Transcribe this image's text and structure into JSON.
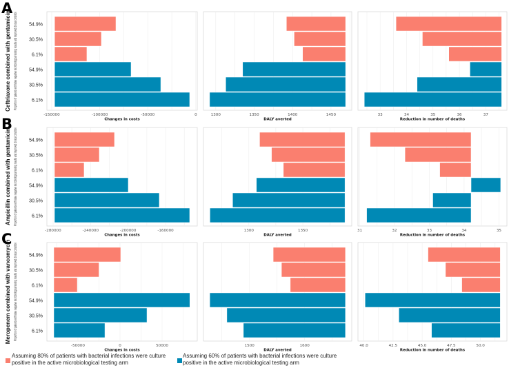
{
  "colors": {
    "red": "#FA7F6F",
    "blue": "#0089B5",
    "grid": "#EEEEEE",
    "frame": "#D9D9D9"
  },
  "legend": {
    "items": [
      {
        "label": "Assuming 80% of patients with bacterial infections were culture positive in the active microbiological testing arm",
        "color": "#FA7F6F"
      },
      {
        "label": "Assuming 60% of patients with bacterial infections were culture positive in the active microbiological testing arm",
        "color": "#0089B5"
      }
    ]
  },
  "chart_data": [
    {
      "label": "A",
      "title": "Ceftriaxone combined with gentamicin",
      "ylabel": "Proportion of patients with false negative microbiological testing results and improved clinical condition",
      "categories": [
        "54.9%",
        "30.5%",
        "6.1%"
      ],
      "panels": [
        {
          "type": "bar",
          "orientation": "horizontal",
          "xlabel": "Changes in costs",
          "xlim": [
            -155000,
            1500
          ],
          "base": -147000,
          "xticks": [
            -150000,
            -100000,
            -50000,
            0
          ],
          "xtick_labels": [
            "-150000",
            "-100000",
            "-50000",
            "0"
          ],
          "series": [
            {
              "color": "#FA7F6F",
              "values": [
                -83200,
                -98300,
                -113400
              ]
            },
            {
              "color": "#0089B5",
              "values": [
                -67400,
                -36500,
                -6400
              ]
            }
          ]
        },
        {
          "type": "bar",
          "orientation": "horizontal",
          "xlabel": "DALY averted",
          "xlim": [
            1284,
            1477
          ],
          "base": 1469,
          "xticks": [
            1300,
            1350,
            1400,
            1450
          ],
          "xtick_labels": [
            "1300",
            "1350",
            "1400",
            "1450"
          ],
          "series": [
            {
              "color": "#FA7F6F",
              "values": [
                1392,
                1402,
                1413
              ]
            },
            {
              "color": "#0089B5",
              "values": [
                1335,
                1313,
                1292
              ]
            }
          ]
        },
        {
          "type": "bar",
          "orientation": "horizontal",
          "xlabel": "Reduction in number of deaths",
          "xlim": [
            32.16,
            37.8
          ],
          "base": 37.6,
          "xticks": [
            33,
            34,
            35,
            36,
            37
          ],
          "xtick_labels": [
            "33",
            "34",
            "35",
            "36",
            "37"
          ],
          "series": [
            {
              "color": "#FA7F6F",
              "values": [
                33.6,
                34.6,
                35.6
              ]
            },
            {
              "color": "#0089B5",
              "values": [
                36.4,
                34.4,
                32.4
              ]
            }
          ]
        }
      ]
    },
    {
      "label": "B",
      "title": "Ampicillin combined with gentamicin",
      "ylabel": "Proportion of patients with false negative microbiological testing results and improved clinical condition",
      "categories": [
        "54.9%",
        "30.5%",
        "6.1%"
      ],
      "panels": [
        {
          "type": "bar",
          "orientation": "horizontal",
          "xlabel": "Changes in costs",
          "xlim": [
            -286600,
            -126200
          ],
          "base": -278500,
          "xticks": [
            -280000,
            -240000,
            -200000,
            -160000
          ],
          "xtick_labels": [
            "-280000",
            "-240000",
            "-200000",
            "-160000"
          ],
          "series": [
            {
              "color": "#FA7F6F",
              "values": [
                -214500,
                -230700,
                -246900
              ]
            },
            {
              "color": "#0089B5",
              "values": [
                -199800,
                -166700,
                -134300
              ]
            }
          ]
        },
        {
          "type": "bar",
          "orientation": "horizontal",
          "xlabel": "DALY averted",
          "xlim": [
            1258,
            1395.3
          ],
          "base": 1389,
          "xticks": [
            1300,
            1350
          ],
          "xtick_labels": [
            "1300",
            "1350"
          ],
          "series": [
            {
              "color": "#FA7F6F",
              "values": [
                1310,
                1321,
                1332
              ]
            },
            {
              "color": "#0089B5",
              "values": [
                1307,
                1285,
                1264
              ]
            }
          ]
        },
        {
          "type": "bar",
          "orientation": "horizontal",
          "xlabel": "Reduction in number of deaths",
          "xlim": [
            30.95,
            35.23
          ],
          "base": 34.2,
          "xticks": [
            31,
            32,
            33,
            34,
            35
          ],
          "xtick_labels": [
            "31",
            "32",
            "33",
            "34",
            "35"
          ],
          "series": [
            {
              "color": "#FA7F6F",
              "values": [
                31.3,
                32.3,
                33.3
              ]
            },
            {
              "color": "#0089B5",
              "values": [
                35.05,
                33.1,
                31.2
              ]
            }
          ]
        }
      ]
    },
    {
      "label": "C",
      "title": "Meropenem combined with vancomycin",
      "ylabel": "Proportion of patients with false negative microbiological testing results and improved clinical condition",
      "categories": [
        "54.9%",
        "30.5%",
        "6.1%"
      ],
      "panels": [
        {
          "type": "bar",
          "orientation": "horizontal",
          "xlabel": "Changes in costs",
          "xlim": [
            -86900,
            91800
          ],
          "base": -78700,
          "xticks": [
            -50000,
            0,
            50000
          ],
          "xtick_labels": [
            "-50000",
            "0",
            "50000"
          ],
          "series": [
            {
              "color": "#FA7F6F",
              "values": [
                800,
                -25000,
                -50800
              ]
            },
            {
              "color": "#0089B5",
              "values": [
                83000,
                32000,
                -18000
              ]
            }
          ]
        },
        {
          "type": "bar",
          "orientation": "horizontal",
          "xlabel": "DALY averted",
          "xlim": [
            1416.6,
            1685.4
          ],
          "base": 1674,
          "xticks": [
            1500,
            1600
          ],
          "xtick_labels": [
            "1500",
            "1600"
          ],
          "series": [
            {
              "color": "#FA7F6F",
              "values": [
                1543,
                1558,
                1574
              ]
            },
            {
              "color": "#0089B5",
              "values": [
                1428,
                1459,
                1489
              ]
            }
          ]
        },
        {
          "type": "bar",
          "orientation": "horizontal",
          "xlabel": "Reduction in number of deaths",
          "xlim": [
            39.49,
            52.27
          ],
          "base": 51.7,
          "xticks": [
            40,
            42.5,
            45,
            47.5,
            50
          ],
          "xtick_labels": [
            "40.0",
            "42.5",
            "45.0",
            "47.5",
            "50.0"
          ],
          "series": [
            {
              "color": "#FA7F6F",
              "values": [
                45.5,
                47.0,
                48.4
              ]
            },
            {
              "color": "#0089B5",
              "values": [
                40.1,
                43.0,
                45.8
              ]
            }
          ]
        }
      ]
    }
  ]
}
